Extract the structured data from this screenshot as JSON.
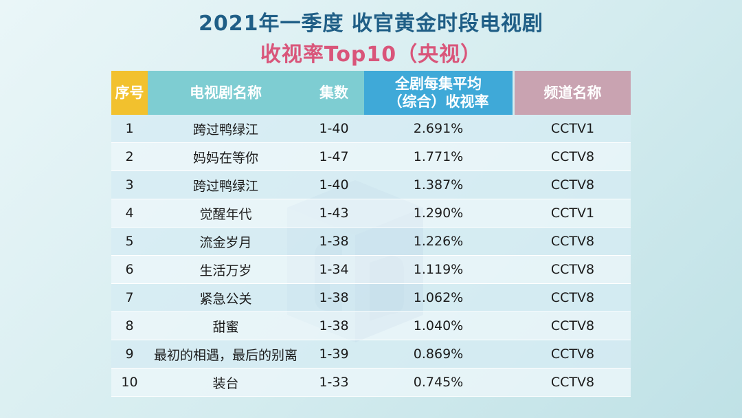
{
  "title": {
    "line1": "2021年一季度 收官黄金时段电视剧",
    "line2": "收视率Top10（央视）"
  },
  "colors": {
    "title1": "#1f5e86",
    "title2": "#d9557a",
    "header_rank": "#f2c12e",
    "header_name": "#7ecdd2",
    "header_rating": "#3fa9d8",
    "header_channel": "#c9a3b1"
  },
  "table": {
    "headers": {
      "rank": "序号",
      "name": "电视剧名称",
      "episodes": "集数",
      "rating_line1": "全剧每集平均",
      "rating_line2": "（综合）收视率",
      "channel": "频道名称"
    },
    "rows": [
      {
        "rank": "1",
        "name": "跨过鸭绿江",
        "episodes": "1-40",
        "rating": "2.691%",
        "channel": "CCTV1"
      },
      {
        "rank": "2",
        "name": "妈妈在等你",
        "episodes": "1-47",
        "rating": "1.771%",
        "channel": "CCTV8"
      },
      {
        "rank": "3",
        "name": "跨过鸭绿江",
        "episodes": "1-40",
        "rating": "1.387%",
        "channel": "CCTV8"
      },
      {
        "rank": "4",
        "name": "觉醒年代",
        "episodes": "1-43",
        "rating": "1.290%",
        "channel": "CCTV1"
      },
      {
        "rank": "5",
        "name": "流金岁月",
        "episodes": "1-38",
        "rating": "1.226%",
        "channel": "CCTV8"
      },
      {
        "rank": "6",
        "name": "生活万岁",
        "episodes": "1-34",
        "rating": "1.119%",
        "channel": "CCTV8"
      },
      {
        "rank": "7",
        "name": "紧急公关",
        "episodes": "1-38",
        "rating": "1.062%",
        "channel": "CCTV8"
      },
      {
        "rank": "8",
        "name": "甜蜜",
        "episodes": "1-38",
        "rating": "1.040%",
        "channel": "CCTV8"
      },
      {
        "rank": "9",
        "name": "最初的相遇，最后的别离",
        "episodes": "1-39",
        "rating": "0.869%",
        "channel": "CCTV8"
      },
      {
        "rank": "10",
        "name": "装台",
        "episodes": "1-33",
        "rating": "0.745%",
        "channel": "CCTV8"
      }
    ]
  },
  "watermark": {
    "icon": "cube-logo-icon"
  }
}
